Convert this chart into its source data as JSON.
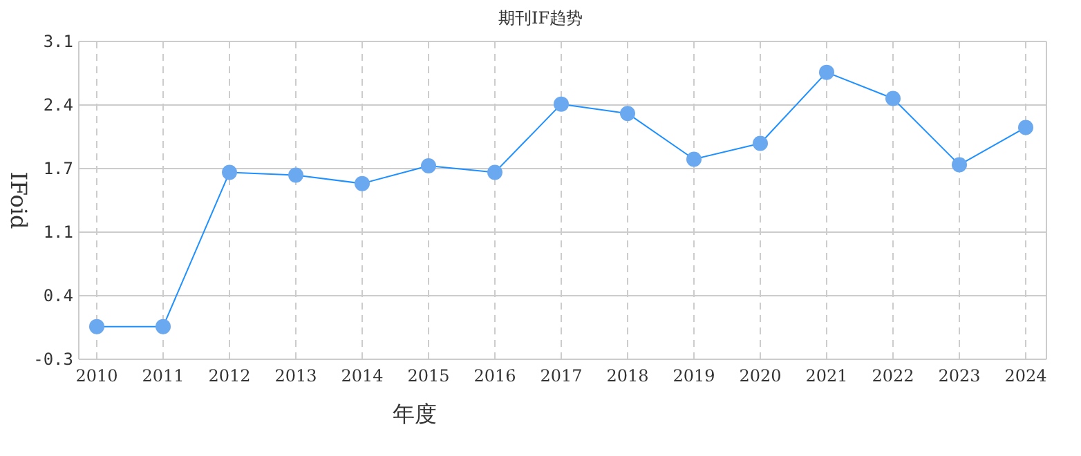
{
  "chart_data": {
    "type": "line",
    "title": "期刊IF趋势",
    "xlabel": "年度",
    "ylabel": "IFoid",
    "categories": [
      "2010",
      "2011",
      "2012",
      "2013",
      "2014",
      "2015",
      "2016",
      "2017",
      "2018",
      "2019",
      "2020",
      "2021",
      "2022",
      "2023",
      "2024"
    ],
    "series": [
      {
        "color": "#1e90ff",
        "values": [
          0.05,
          0.05,
          1.7,
          1.67,
          1.58,
          1.77,
          1.7,
          2.43,
          2.33,
          1.84,
          2.01,
          2.77,
          2.49,
          1.78,
          2.18
        ]
      }
    ],
    "ylim": [
      -0.3,
      3.1
    ],
    "yticks": [
      -0.3,
      {
        "value": 0.38,
        "label": "0.4"
      },
      {
        "value": 1.06,
        "label": "1.1"
      },
      {
        "value": 1.74,
        "label": "1.7"
      },
      {
        "value": 2.42,
        "label": "2.4"
      },
      3.1
    ],
    "grid": true,
    "marker": "circle",
    "line_style": "solid"
  }
}
